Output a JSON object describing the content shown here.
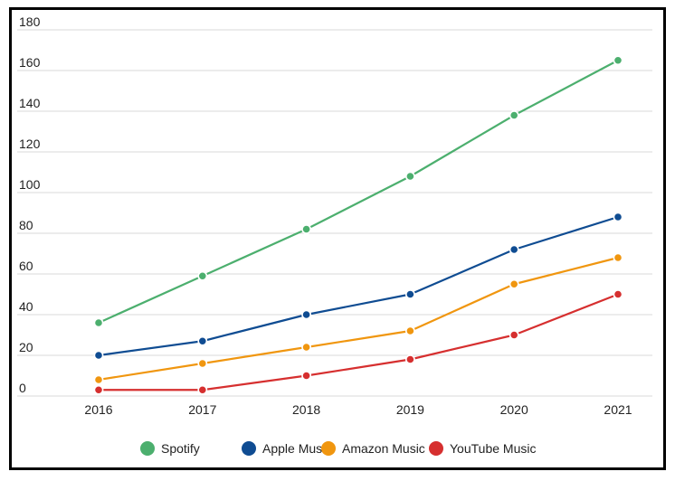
{
  "chart_data": {
    "type": "line",
    "title": "",
    "xlabel": "",
    "ylabel": "",
    "categories": [
      "2016",
      "2017",
      "2018",
      "2019",
      "2020",
      "2021"
    ],
    "ylim": [
      0,
      180
    ],
    "yticks": [
      0,
      20,
      40,
      60,
      80,
      100,
      120,
      140,
      160,
      180
    ],
    "grid": true,
    "legend_position": "bottom",
    "series": [
      {
        "name": "Spotify",
        "color": "#4caf6e",
        "values": [
          36,
          59,
          82,
          108,
          138,
          165
        ]
      },
      {
        "name": "Apple Music",
        "color": "#0f4c92",
        "values": [
          20,
          27,
          40,
          50,
          72,
          88
        ]
      },
      {
        "name": "Amazon Music",
        "color": "#f0960f",
        "values": [
          8,
          16,
          24,
          32,
          55,
          68
        ]
      },
      {
        "name": "YouTube Music",
        "color": "#d62f2f",
        "values": [
          3,
          3,
          10,
          18,
          30,
          50
        ]
      }
    ]
  }
}
